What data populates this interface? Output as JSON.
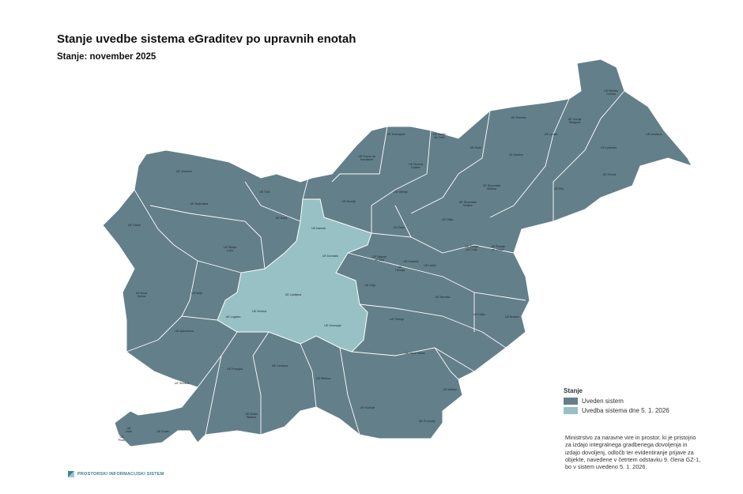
{
  "title": "Stanje uvedbe sistema eGraditev po upravnih enotah",
  "subtitle": "Stanje: november 2025",
  "colors": {
    "implemented": "#637f8a",
    "upcoming": "#97c1c5",
    "border": "#ffffff"
  },
  "legend": {
    "heading": "Stanje",
    "items": [
      {
        "label": "Uveden sistem",
        "color": "#637f8a"
      },
      {
        "label": "Uvedba sistema dne 5. 1. 2026",
        "color": "#97c1c5"
      }
    ]
  },
  "note": "Ministrstvo za naravne vire in prostor, ki je pristojno za izdajo integralnega gradbenega dovoljenja in izdajo dovoljenj, odločb ter evidentiranje prijave za objekte, navedene v četrtem odstavku 9. člena GZ-1, bo v sistem uvedeno 5. 1. 2026.",
  "logo_text": "PROSTORSKI INFORMACIJSKI SISTEM",
  "units": [
    {
      "name": "UE Murska\nSobota",
      "status": "implemented"
    },
    {
      "name": "UE Lendava",
      "status": "implemented"
    },
    {
      "name": "UE Gornja\nRadgona",
      "status": "implemented"
    },
    {
      "name": "UE Ljutomer",
      "status": "implemented"
    },
    {
      "name": "UE Ormož",
      "status": "implemented"
    },
    {
      "name": "UE Pesnica",
      "status": "implemented"
    },
    {
      "name": "UE Lenart",
      "status": "implemented"
    },
    {
      "name": "UE Maribor",
      "status": "implemented"
    },
    {
      "name": "UE Ptuj",
      "status": "implemented"
    },
    {
      "name": "UE Ruše",
      "status": "implemented"
    },
    {
      "name": "UE Radlje\nob Dravi",
      "status": "implemented"
    },
    {
      "name": "UE Dravograd",
      "status": "implemented"
    },
    {
      "name": "UE Ravne na\nKoroškem",
      "status": "implemented"
    },
    {
      "name": "UE Slovenj\nGradec",
      "status": "implemented"
    },
    {
      "name": "UE Slovenska\nBistrica",
      "status": "implemented"
    },
    {
      "name": "UE Slovenske\nKonjice",
      "status": "implemented"
    },
    {
      "name": "UE Velenje",
      "status": "implemented"
    },
    {
      "name": "UE Mozirje",
      "status": "implemented"
    },
    {
      "name": "UE Žalec",
      "status": "implemented"
    },
    {
      "name": "UE Celje",
      "status": "implemented"
    },
    {
      "name": "UE Šentjur\npri Celju",
      "status": "implemented"
    },
    {
      "name": "UE Šmarje\npri Jelšah",
      "status": "implemented"
    },
    {
      "name": "UE Laško",
      "status": "implemented"
    },
    {
      "name": "UE Zagorje\nob Savi",
      "status": "implemented"
    },
    {
      "name": "UE Hrastnik",
      "status": "implemented"
    },
    {
      "name": "UE\nTrbovlje",
      "status": "implemented"
    },
    {
      "name": "UE Litija",
      "status": "implemented"
    },
    {
      "name": "UE Sevnica",
      "status": "implemented"
    },
    {
      "name": "UE Krško",
      "status": "implemented"
    },
    {
      "name": "UE Brežice",
      "status": "implemented"
    },
    {
      "name": "UE Trebnje",
      "status": "implemented"
    },
    {
      "name": "UE Novo mesto",
      "status": "implemented"
    },
    {
      "name": "UE Metlika",
      "status": "implemented"
    },
    {
      "name": "UE Črnomelj",
      "status": "implemented"
    },
    {
      "name": "UE Kočevje",
      "status": "implemented"
    },
    {
      "name": "UE Ribnica",
      "status": "implemented"
    },
    {
      "name": "UE Cerknica",
      "status": "implemented"
    },
    {
      "name": "UE Postojna",
      "status": "implemented"
    },
    {
      "name": "UE Ilirska\nBistrica",
      "status": "implemented"
    },
    {
      "name": "UE Sežana",
      "status": "implemented"
    },
    {
      "name": "UE Koper",
      "status": "implemented"
    },
    {
      "name": "UE\nIzola",
      "status": "implemented"
    },
    {
      "name": "UE\nPiran",
      "status": "implemented"
    },
    {
      "name": "UE Ajdovščina",
      "status": "implemented"
    },
    {
      "name": "UE Nova\nGorica",
      "status": "implemented"
    },
    {
      "name": "UE Idrija",
      "status": "implemented"
    },
    {
      "name": "UE Tolmin",
      "status": "implemented"
    },
    {
      "name": "UE Jesenice",
      "status": "implemented"
    },
    {
      "name": "UE Radovljica",
      "status": "implemented"
    },
    {
      "name": "UE Tržič",
      "status": "implemented"
    },
    {
      "name": "UE Kranj",
      "status": "implemented"
    },
    {
      "name": "UE Škofja\nLoka",
      "status": "implemented"
    },
    {
      "name": "UE Kamnik",
      "status": "upcoming"
    },
    {
      "name": "UE Domžale",
      "status": "upcoming"
    },
    {
      "name": "UE Ljubljana",
      "status": "upcoming"
    },
    {
      "name": "UE Vrhnika",
      "status": "upcoming"
    },
    {
      "name": "UE Logatec",
      "status": "upcoming"
    },
    {
      "name": "UE Grosuplje",
      "status": "upcoming"
    }
  ]
}
